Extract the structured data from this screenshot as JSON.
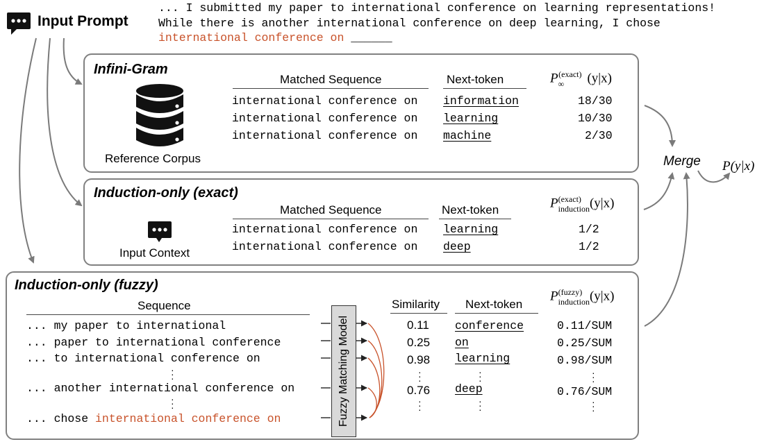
{
  "header": {
    "label": "Input Prompt",
    "prompt_lines": [
      "... I submitted my paper to international conference on learning representations!",
      "While there is another international conference on deep learning, I chose"
    ],
    "prompt_highlight": "international conference on",
    "prompt_blank": "______"
  },
  "infini": {
    "title": "Infini-Gram",
    "corpus_label": "Reference Corpus",
    "col_seq": "Matched Sequence",
    "col_next": "Next-token",
    "rows": [
      {
        "seq": "international conference on",
        "next": "information",
        "prob": "18/30"
      },
      {
        "seq": "international conference on",
        "next": "learning",
        "prob": "10/30"
      },
      {
        "seq": "international conference on",
        "next": "machine",
        "prob": "2/30"
      }
    ]
  },
  "exact": {
    "title": "Induction-only (exact)",
    "context_label": "Input Context",
    "col_seq": "Matched Sequence",
    "col_next": "Next-token",
    "rows": [
      {
        "seq": "international conference on",
        "next": "learning",
        "prob": "1/2"
      },
      {
        "seq": "international conference on",
        "next": "deep",
        "prob": "1/2"
      }
    ]
  },
  "fuzzy": {
    "title": "Induction-only (fuzzy)",
    "col_seq": "Sequence",
    "col_sim": "Similarity",
    "col_next": "Next-token",
    "model_label": "Fuzzy Matching Model",
    "rows": [
      {
        "seq": "... my paper to international",
        "sim": "0.11",
        "next": "conference",
        "prob": "0.11/SUM"
      },
      {
        "seq": "... paper to international conference",
        "sim": "0.25",
        "next": "on",
        "prob": "0.25/SUM"
      },
      {
        "seq": "... to international conference on",
        "sim": "0.98",
        "next": "learning",
        "prob": "0.98/SUM"
      },
      {
        "seq": "... another international conference on",
        "sim": "0.76",
        "next": "deep",
        "prob": "0.76/SUM"
      }
    ],
    "last_seq_prefix": "... chose",
    "last_seq_highlight": "international conference on"
  },
  "math": {
    "p_infty": "P",
    "p_infty_sup": "(exact)",
    "p_infty_sub": "∞",
    "p_ind_exact_sup": "(exact)",
    "p_ind_sub": "induction",
    "p_ind_fuzzy_sup": "(fuzzy)",
    "cond": "(y|x)",
    "final": "P(y|x)"
  },
  "merge_label": "Merge",
  "colors": {
    "highlight": "#c8522a",
    "border": "#808080",
    "model_fill": "#d9d9d9",
    "arrow": "#7a7a7a"
  },
  "icons": [
    "chat-bubble-icon",
    "database-icon",
    "chat-bubble-icon"
  ]
}
